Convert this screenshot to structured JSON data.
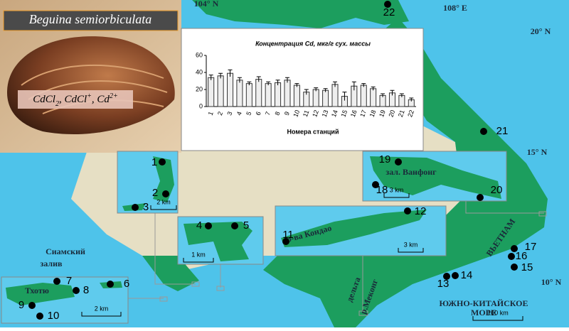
{
  "header": {
    "species": "Beguina semiorbiculata",
    "formula": [
      "CdCl",
      "2",
      ", CdCl",
      "+",
      ", Cd",
      "2+"
    ]
  },
  "chart_data": {
    "type": "bar",
    "title": "Концентрация Cd, мкг/г сух. массы",
    "x_label": "Номера станций",
    "categories": [
      "1",
      "2",
      "3",
      "4",
      "5",
      "6",
      "7",
      "8",
      "9",
      "10",
      "11",
      "12",
      "13",
      "14",
      "15",
      "16",
      "17",
      "18",
      "19",
      "20",
      "21",
      "22"
    ],
    "values": [
      34,
      36,
      39,
      31,
      27,
      32,
      27,
      28,
      31,
      25,
      17,
      20,
      19,
      26,
      12,
      24,
      25,
      21,
      13,
      16,
      13,
      8
    ],
    "errors": [
      3,
      3,
      4,
      3,
      2,
      3,
      2,
      3,
      3,
      2,
      3,
      2,
      2,
      3,
      5,
      5,
      2,
      2,
      2,
      3,
      2,
      2
    ],
    "color": "#eeeeee",
    "ylim": [
      0,
      60
    ],
    "yticks": [
      0,
      20,
      40,
      60
    ]
  },
  "map": {
    "labels": {
      "lon1": "104° N",
      "lon2": "108° E",
      "lat20": "20° N",
      "lat15": "15° N",
      "lat10": "10° N",
      "gulf1": "Сиамский",
      "gulf2": "залив",
      "country": "ВЬЕТНАМ",
      "sea1": "ЮЖНО-КИТАЙСКОЕ",
      "sea2": "МОРЕ",
      "delta1": "дельта",
      "delta2": "р.Меконг",
      "island1": "Тхотю",
      "island2": "о-ва Кондао",
      "bay": "зал. Ванфонг"
    },
    "stations": [
      "1",
      "2",
      "3",
      "4",
      "5",
      "6",
      "7",
      "8",
      "9",
      "10",
      "11",
      "12",
      "13",
      "14",
      "15",
      "16",
      "17",
      "18",
      "19",
      "20",
      "21",
      "22"
    ],
    "scales": [
      "2 km",
      "1 km",
      "3 km",
      "3 km",
      "2 km",
      "100 km"
    ]
  }
}
